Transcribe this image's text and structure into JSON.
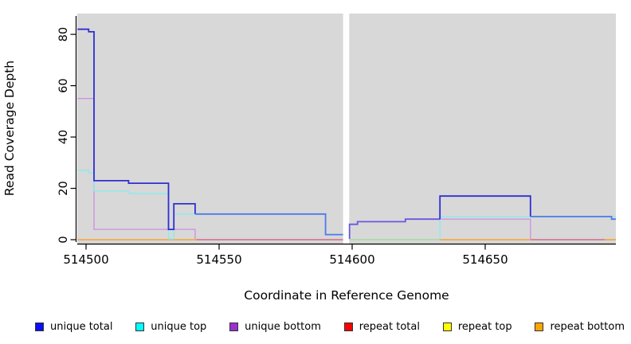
{
  "chart_data": {
    "type": "line",
    "style": "step",
    "title": "",
    "xlabel": "Coordinate in Reference Genome",
    "ylabel": "Read Coverage Depth",
    "x_ticks": [
      "514500",
      "514550",
      "514600",
      "514650"
    ],
    "x_tick_values": [
      514500,
      514550,
      514600,
      514650
    ],
    "y_ticks": [
      "0",
      "20",
      "40",
      "60",
      "80"
    ],
    "y_tick_values": [
      0,
      20,
      40,
      60,
      80
    ],
    "xlim": [
      514496.8,
      514699.1
    ],
    "ylim": [
      0,
      88
    ],
    "grid": false,
    "legend_position": "bottom",
    "plot_background": "#d8d8d8",
    "gap_region": {
      "x_start": 514596.6,
      "x_end": 514598.9,
      "color": "#ffffff",
      "note": "white band of missing coverage near 514600"
    },
    "series": [
      {
        "name": "unique total",
        "color": "#2f2fd3",
        "step_points": [
          [
            514497,
            82
          ],
          [
            514501,
            81
          ],
          [
            514503,
            23
          ],
          [
            514516,
            22
          ],
          [
            514531,
            4
          ],
          [
            514533,
            14
          ],
          [
            514541,
            10
          ],
          [
            514590,
            2
          ],
          [
            514597,
            null
          ],
          [
            514599,
            6
          ],
          [
            514602,
            7
          ],
          [
            514620,
            8
          ],
          [
            514633,
            17
          ],
          [
            514667,
            9
          ],
          [
            514697,
            8
          ]
        ]
      },
      {
        "name": "unique top",
        "color": "#8deaea",
        "step_points": [
          [
            514497,
            27
          ],
          [
            514501,
            26
          ],
          [
            514503,
            19
          ],
          [
            514516,
            18
          ],
          [
            514531,
            0
          ],
          [
            514533,
            10
          ],
          [
            514590,
            2
          ],
          [
            514597,
            null
          ],
          [
            514599,
            0
          ],
          [
            514633,
            9
          ]
        ]
      },
      {
        "name": "unique bottom",
        "color": "#cf92e4",
        "step_points": [
          [
            514497,
            55
          ],
          [
            514503,
            4
          ],
          [
            514541,
            0
          ],
          [
            514597,
            null
          ],
          [
            514599,
            6
          ],
          [
            514602,
            7
          ],
          [
            514620,
            8
          ],
          [
            514633,
            8
          ],
          [
            514667,
            0
          ]
        ]
      },
      {
        "name": "repeat total",
        "color": "#ff0000",
        "step_points": [
          [
            514497,
            0
          ]
        ]
      },
      {
        "name": "repeat top",
        "color": "#ffff00",
        "step_points": [
          [
            514497,
            0
          ]
        ]
      },
      {
        "name": "repeat bottom",
        "color": "#ffa500",
        "step_points": [
          [
            514497,
            0
          ]
        ]
      }
    ],
    "rendered_lines": [
      {
        "color": "#f9a12f",
        "width": 1.6,
        "points": [
          [
            514496.8,
            0
          ],
          [
            514541.5,
            0
          ]
        ]
      },
      {
        "color": "#d4688a",
        "width": 1.6,
        "points": [
          [
            514541.5,
            0
          ],
          [
            514596.6,
            0
          ]
        ]
      },
      {
        "color": "#a8d8a2",
        "width": 1.6,
        "points": [
          [
            514598.9,
            0
          ],
          [
            514633,
            0
          ]
        ]
      },
      {
        "color": "#f9a12f",
        "width": 1.6,
        "points": [
          [
            514633,
            0
          ],
          [
            514667,
            0
          ]
        ]
      },
      {
        "color": "#d4688a",
        "width": 1.6,
        "points": [
          [
            514667,
            0
          ],
          [
            514695,
            0
          ]
        ]
      },
      {
        "color": "#f9a12f",
        "width": 1.6,
        "points": [
          [
            514695,
            0
          ],
          [
            514699.1,
            0
          ]
        ]
      },
      {
        "color": "#cf92e4",
        "width": 1.4,
        "points": [
          [
            514496.8,
            55
          ],
          [
            514503,
            55
          ],
          [
            514503,
            4
          ],
          [
            514541,
            4
          ],
          [
            514541,
            0.3
          ]
        ]
      },
      {
        "color": "#cf92e4",
        "width": 1.4,
        "points": [
          [
            514633,
            8
          ],
          [
            514667,
            8
          ],
          [
            514667,
            0.3
          ]
        ]
      },
      {
        "color": "#8deaea",
        "width": 1.4,
        "points": [
          [
            514496.8,
            27
          ],
          [
            514501,
            27
          ],
          [
            514501,
            26
          ],
          [
            514503,
            26
          ],
          [
            514503,
            19
          ],
          [
            514516,
            19
          ],
          [
            514516,
            18
          ],
          [
            514531,
            18
          ],
          [
            514531,
            0.3
          ],
          [
            514533,
            0.3
          ],
          [
            514533,
            10
          ],
          [
            514590,
            10
          ],
          [
            514590,
            2
          ],
          [
            514596.6,
            2
          ]
        ]
      },
      {
        "color": "#8deaea",
        "width": 1.4,
        "points": [
          [
            514633,
            0.3
          ],
          [
            514633,
            9
          ],
          [
            514699.1,
            9
          ]
        ]
      },
      {
        "color": "#2f2fd3",
        "width": 1.8,
        "points": [
          [
            514496.8,
            82
          ],
          [
            514501,
            82
          ],
          [
            514501,
            81
          ],
          [
            514503,
            81
          ],
          [
            514503,
            23
          ],
          [
            514516,
            23
          ],
          [
            514516,
            22
          ],
          [
            514531,
            22
          ],
          [
            514531,
            4
          ],
          [
            514533,
            4
          ],
          [
            514533,
            14
          ],
          [
            514541,
            14
          ],
          [
            514541,
            10
          ]
        ]
      },
      {
        "color": "#4d7ae9",
        "width": 1.8,
        "points": [
          [
            514541,
            10
          ],
          [
            514590,
            10
          ],
          [
            514590,
            2
          ],
          [
            514596.6,
            2
          ]
        ]
      },
      {
        "color": "#6b57e0",
        "width": 1.8,
        "points": [
          [
            514599,
            0.3
          ],
          [
            514599,
            6
          ],
          [
            514602,
            6
          ],
          [
            514602,
            7
          ],
          [
            514620,
            7
          ],
          [
            514620,
            8
          ],
          [
            514633,
            8
          ]
        ]
      },
      {
        "color": "#2f2fd3",
        "width": 1.8,
        "points": [
          [
            514633,
            8
          ],
          [
            514633,
            17
          ],
          [
            514667,
            17
          ],
          [
            514667,
            9
          ]
        ]
      },
      {
        "color": "#4d7ae9",
        "width": 1.8,
        "points": [
          [
            514667,
            9
          ],
          [
            514697.5,
            9
          ],
          [
            514697.5,
            8
          ],
          [
            514699.1,
            8
          ]
        ]
      }
    ]
  },
  "legend": {
    "items": [
      {
        "label": "unique total",
        "color": "#0d0dfa"
      },
      {
        "label": "unique top",
        "color": "#00ffff"
      },
      {
        "label": "unique bottom",
        "color": "#9b30d0"
      },
      {
        "label": "repeat total",
        "color": "#ff0000"
      },
      {
        "label": "repeat top",
        "color": "#ffff00"
      },
      {
        "label": "repeat bottom",
        "color": "#ffa500"
      }
    ]
  }
}
